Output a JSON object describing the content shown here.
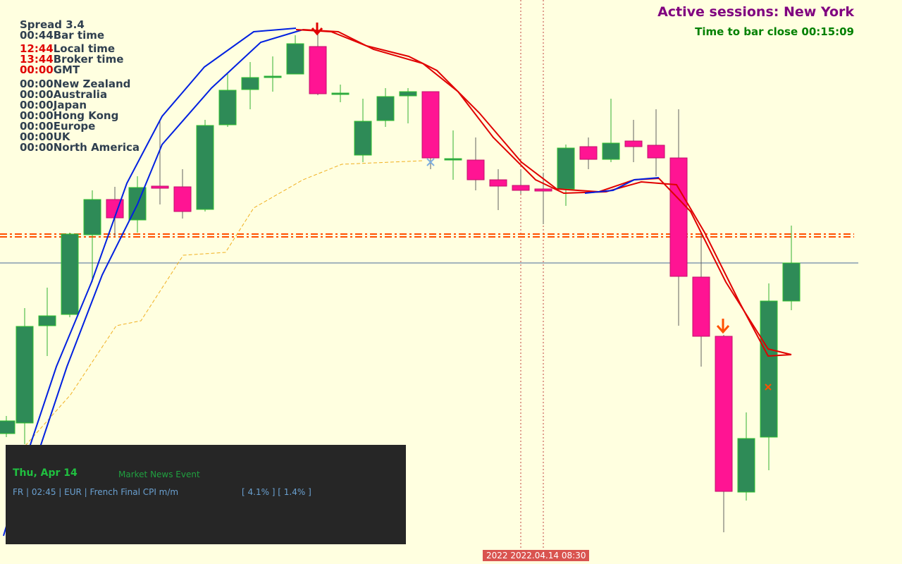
{
  "info": {
    "spread": "Spread 3.4",
    "clocks": [
      {
        "time": "00:44",
        "label": "Bar time"
      },
      {
        "time": "12:44",
        "label": "Local time"
      },
      {
        "time": "13:44",
        "label": "Broker time"
      },
      {
        "time": "00:00",
        "label": "GMT"
      }
    ],
    "sessions": [
      {
        "time": "00:00",
        "label": "New Zealand"
      },
      {
        "time": "00:00",
        "label": "Australia"
      },
      {
        "time": "00:00",
        "label": "Japan"
      },
      {
        "time": "00:00",
        "label": "Hong Kong"
      },
      {
        "time": "00:00",
        "label": "Europe"
      },
      {
        "time": "00:00",
        "label": "UK"
      },
      {
        "time": "00:00",
        "label": "North America"
      }
    ]
  },
  "status": {
    "active_sessions": "Active sessions: New York",
    "bar_close": "Time to bar close 00:15:09"
  },
  "news": {
    "date": "Thu, Apr 14",
    "heading": "Market News Event",
    "event": "FR | 02:45 | EUR | French Final CPI m/m",
    "figures": "[ 4.1% ] [ 1.4% ]"
  },
  "time_marker": "2022 2022.04.14 08:30"
}
